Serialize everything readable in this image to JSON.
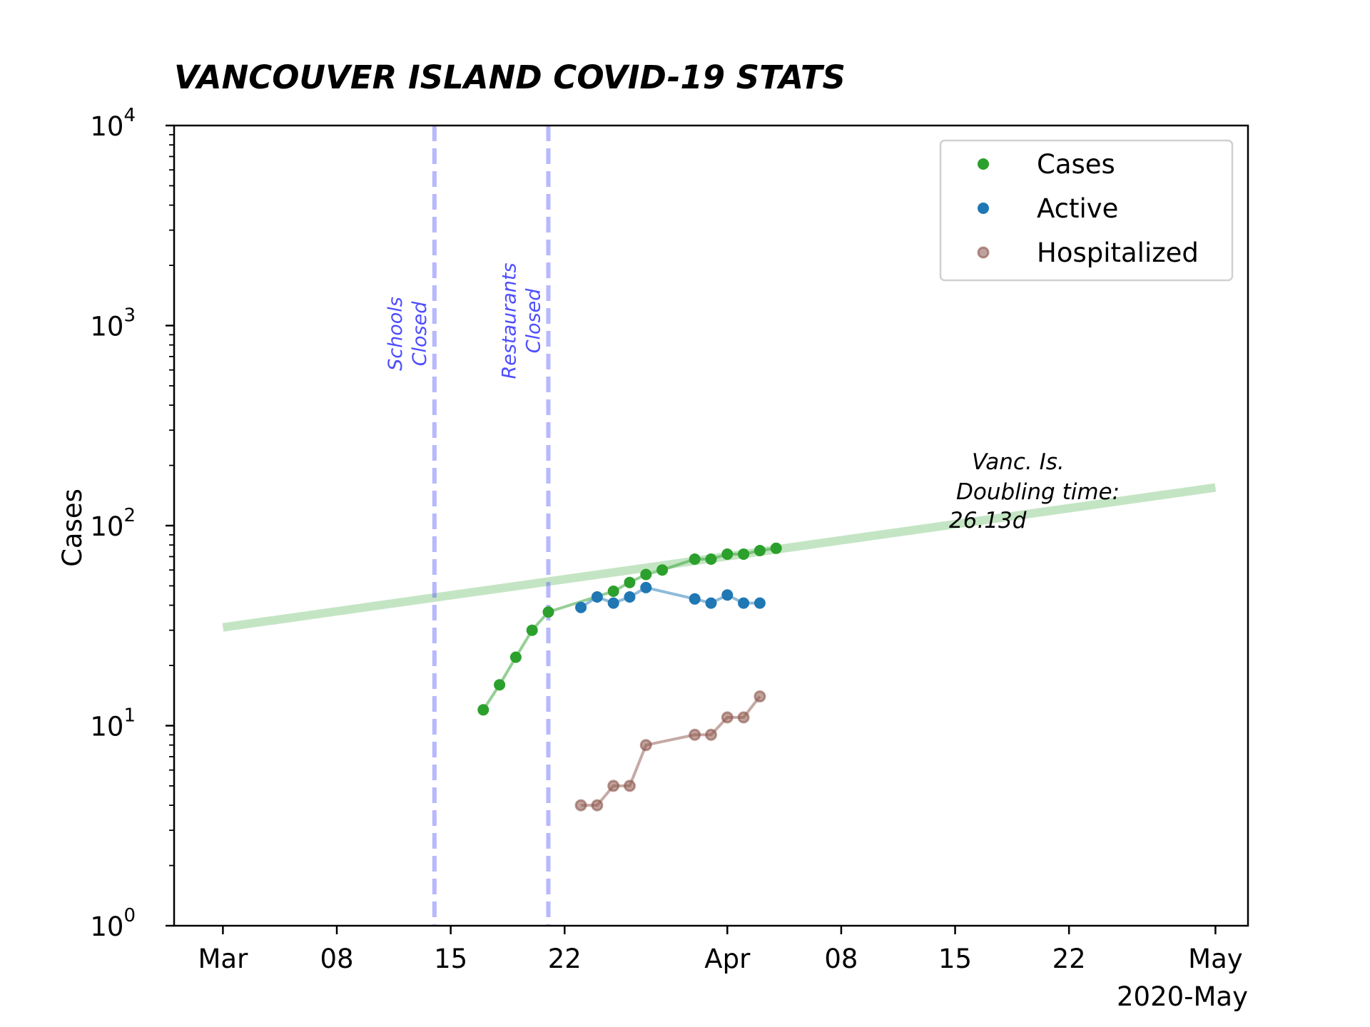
{
  "chart_data": {
    "type": "line",
    "title": "VANCOUVER ISLAND COVID-19 STATS",
    "xlabel": "",
    "ylabel": "Cases",
    "yscale": "log",
    "ylim": [
      1,
      10000
    ],
    "xlim": [
      "2020-02-27",
      "2020-05-03"
    ],
    "x_ticks": [
      {
        "date": "2020-03-01",
        "label": "Mar"
      },
      {
        "date": "2020-03-08",
        "label": "08"
      },
      {
        "date": "2020-03-15",
        "label": "15"
      },
      {
        "date": "2020-03-22",
        "label": "22"
      },
      {
        "date": "2020-04-01",
        "label": "Apr"
      },
      {
        "date": "2020-04-08",
        "label": "08"
      },
      {
        "date": "2020-04-15",
        "label": "15"
      },
      {
        "date": "2020-04-22",
        "label": "22"
      },
      {
        "date": "2020-05-01",
        "label": "May"
      }
    ],
    "x_offset_label": "2020-May",
    "y_ticks": [
      {
        "value": 1,
        "base": "10",
        "exp": "0"
      },
      {
        "value": 10,
        "base": "10",
        "exp": "1"
      },
      {
        "value": 100,
        "base": "10",
        "exp": "2"
      },
      {
        "value": 1000,
        "base": "10",
        "exp": "3"
      },
      {
        "value": 10000,
        "base": "10",
        "exp": "4"
      }
    ],
    "grid": false,
    "legend_position": "top-right",
    "series": [
      {
        "name": "Cases",
        "color": "#2ca02c",
        "points": [
          [
            "2020-03-17",
            12
          ],
          [
            "2020-03-18",
            16
          ],
          [
            "2020-03-19",
            22
          ],
          [
            "2020-03-20",
            30
          ],
          [
            "2020-03-21",
            37
          ],
          [
            "2020-03-25",
            47
          ],
          [
            "2020-03-26",
            52
          ],
          [
            "2020-03-27",
            57
          ],
          [
            "2020-03-28",
            60
          ],
          [
            "2020-03-30",
            68
          ],
          [
            "2020-03-31",
            68
          ],
          [
            "2020-04-01",
            72
          ],
          [
            "2020-04-02",
            72
          ],
          [
            "2020-04-03",
            75
          ],
          [
            "2020-04-04",
            77
          ]
        ]
      },
      {
        "name": "Active",
        "color": "#1f77b4",
        "points": [
          [
            "2020-03-23",
            39
          ],
          [
            "2020-03-24",
            44
          ],
          [
            "2020-03-25",
            41
          ],
          [
            "2020-03-26",
            44
          ],
          [
            "2020-03-27",
            49
          ],
          [
            "2020-03-30",
            43
          ],
          [
            "2020-03-31",
            41
          ],
          [
            "2020-04-01",
            45
          ],
          [
            "2020-04-02",
            41
          ],
          [
            "2020-04-03",
            41
          ]
        ]
      },
      {
        "name": "Hospitalized",
        "color": "#8c564b",
        "points": [
          [
            "2020-03-23",
            4
          ],
          [
            "2020-03-24",
            4
          ],
          [
            "2020-03-25",
            5
          ],
          [
            "2020-03-26",
            5
          ],
          [
            "2020-03-27",
            8
          ],
          [
            "2020-03-30",
            9
          ],
          [
            "2020-03-31",
            9
          ],
          [
            "2020-04-01",
            11
          ],
          [
            "2020-04-02",
            11
          ],
          [
            "2020-04-03",
            14
          ]
        ]
      }
    ],
    "trend_line": {
      "color": "#2ca02c",
      "points": [
        [
          "2020-03-01",
          31
        ],
        [
          "2020-05-01",
          155
        ]
      ]
    },
    "events": [
      {
        "date": "2020-03-14",
        "lines": [
          "Schools",
          "Closed"
        ],
        "color": "#4d4dff"
      },
      {
        "date": "2020-03-21",
        "lines": [
          "Restaurants",
          "Closed"
        ],
        "color": "#4d4dff"
      }
    ],
    "annotation": {
      "lines": [
        "Vanc. Is.",
        "Doubling time:",
        "26.13d"
      ]
    }
  }
}
